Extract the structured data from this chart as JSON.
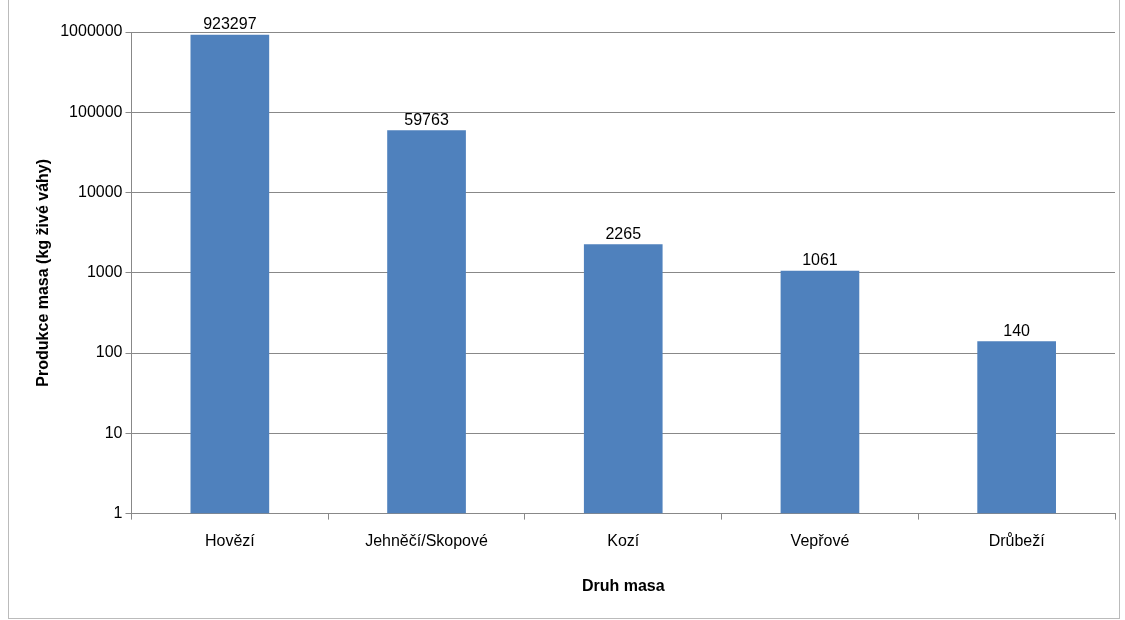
{
  "chart_data": {
    "type": "bar",
    "xlabel": "Druh masa",
    "ylabel": "Produkce masa (kg živé váhy)",
    "categories": [
      "Hovězí",
      "Jehněčí/Skopové",
      "Kozí",
      "Vepřové",
      "Drůbeží"
    ],
    "values": [
      923297,
      59763,
      2265,
      1061,
      140
    ],
    "color": "#4f81bd",
    "log": "y",
    "ylim": [
      1,
      1000000
    ],
    "yticks": [
      1,
      10,
      100,
      1000,
      10000,
      100000,
      1000000
    ],
    "grid": "y",
    "data_labels": true
  }
}
